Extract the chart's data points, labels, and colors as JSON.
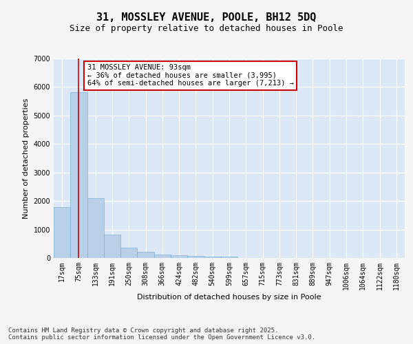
{
  "title1": "31, MOSSLEY AVENUE, POOLE, BH12 5DQ",
  "title2": "Size of property relative to detached houses in Poole",
  "xlabel": "Distribution of detached houses by size in Poole",
  "ylabel": "Number of detached properties",
  "categories": [
    "17sqm",
    "75sqm",
    "133sqm",
    "191sqm",
    "250sqm",
    "308sqm",
    "366sqm",
    "424sqm",
    "482sqm",
    "540sqm",
    "599sqm",
    "657sqm",
    "715sqm",
    "773sqm",
    "831sqm",
    "889sqm",
    "947sqm",
    "1006sqm",
    "1064sqm",
    "1122sqm",
    "1180sqm"
  ],
  "values": [
    1780,
    5820,
    2090,
    820,
    370,
    210,
    130,
    100,
    80,
    55,
    40,
    0,
    0,
    0,
    0,
    0,
    0,
    0,
    0,
    0,
    0
  ],
  "bar_color": "#b8d0e8",
  "bar_edgecolor": "#6aaad4",
  "vline_x": 1,
  "vline_color": "#cc0000",
  "annotation_text": "31 MOSSLEY AVENUE: 93sqm\n← 36% of detached houses are smaller (3,995)\n64% of semi-detached houses are larger (7,213) →",
  "annotation_box_edgecolor": "#cc0000",
  "annotation_box_facecolor": "#ffffff",
  "ylim": [
    0,
    7000
  ],
  "yticks": [
    0,
    1000,
    2000,
    3000,
    4000,
    5000,
    6000,
    7000
  ],
  "bg_color": "#dce8f5",
  "grid_color": "#ffffff",
  "fig_bg_color": "#f5f5f5",
  "footnote": "Contains HM Land Registry data © Crown copyright and database right 2025.\nContains public sector information licensed under the Open Government Licence v3.0.",
  "title_fontsize": 11,
  "subtitle_fontsize": 9,
  "axis_label_fontsize": 8,
  "tick_fontsize": 7,
  "annotation_fontsize": 7.5,
  "footnote_fontsize": 6.5
}
